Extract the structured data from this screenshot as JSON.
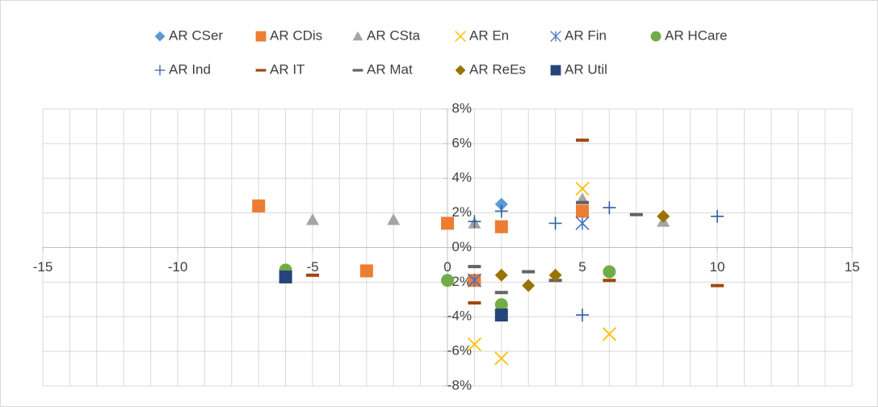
{
  "chart_data": {
    "type": "scatter",
    "xlim": [
      -15,
      15
    ],
    "xticks": [
      -15,
      -10,
      -5,
      0,
      5,
      10,
      15
    ],
    "xgrid": [
      -15,
      -14,
      -13,
      -12,
      -11,
      -10,
      -9,
      -8,
      -7,
      -6,
      -5,
      -4,
      -3,
      -2,
      -1,
      0,
      1,
      2,
      3,
      4,
      5,
      6,
      7,
      8,
      9,
      10,
      11,
      12,
      13,
      14,
      15
    ],
    "ylim": [
      -8,
      8
    ],
    "yticks": [
      {
        "value": -8,
        "label": "-8%"
      },
      {
        "value": -6,
        "label": "-6%"
      },
      {
        "value": -4,
        "label": "-4%"
      },
      {
        "value": -2,
        "label": "-2%"
      },
      {
        "value": 0,
        "label": "0%"
      },
      {
        "value": 2,
        "label": "2%"
      },
      {
        "value": 4,
        "label": "4%"
      },
      {
        "value": 6,
        "label": "6%"
      },
      {
        "value": 8,
        "label": "8%"
      }
    ],
    "grid": true,
    "legend": "top",
    "series": [
      {
        "name": "AR CSer",
        "color": "#5b9bd5",
        "marker": "diamond",
        "x": [
          2
        ],
        "values": [
          2.5
        ]
      },
      {
        "name": "AR CDis",
        "color": "#ed7d31",
        "marker": "square",
        "x": [
          -7,
          0,
          2,
          -3,
          1,
          5
        ],
        "values": [
          2.4,
          1.4,
          1.2,
          -1.35,
          -1.9,
          2.1
        ]
      },
      {
        "name": "AR CSta",
        "color": "#a5a5a5",
        "marker": "triangle",
        "x": [
          -5,
          -2,
          1,
          5,
          8
        ],
        "values": [
          1.6,
          1.6,
          1.4,
          2.8,
          1.5
        ]
      },
      {
        "name": "AR En",
        "color": "#ffc000",
        "marker": "x",
        "x": [
          5,
          1,
          2,
          6
        ],
        "values": [
          3.4,
          -5.6,
          -6.4,
          -5.0
        ]
      },
      {
        "name": "AR Fin",
        "color": "#4472c4",
        "marker": "star",
        "x": [
          5,
          1
        ],
        "values": [
          1.4,
          -1.9
        ]
      },
      {
        "name": "AR HCare",
        "color": "#70ad47",
        "marker": "circle",
        "x": [
          -6,
          0,
          2,
          6
        ],
        "values": [
          -1.3,
          -1.9,
          -3.3,
          -1.4
        ]
      },
      {
        "name": "AR Ind",
        "color": "#2e5fa0",
        "marker": "plus",
        "x": [
          1,
          2,
          4,
          6,
          10,
          5
        ],
        "values": [
          1.5,
          2.1,
          1.4,
          2.3,
          1.8,
          -3.9
        ]
      },
      {
        "name": "AR IT",
        "color": "#9e480e",
        "marker": "dash",
        "x": [
          5,
          -5,
          1,
          6,
          10
        ],
        "values": [
          6.2,
          -1.6,
          -3.2,
          -1.9,
          -2.2
        ]
      },
      {
        "name": "AR Mat",
        "color": "#636363",
        "marker": "dash",
        "x": [
          1,
          2,
          3,
          4,
          5,
          7
        ],
        "values": [
          -1.1,
          -2.6,
          -1.4,
          -1.9,
          2.6,
          1.9
        ]
      },
      {
        "name": "AR ReEs",
        "color": "#997300",
        "marker": "diamond",
        "x": [
          2,
          3,
          4,
          8
        ],
        "values": [
          -1.6,
          -2.2,
          -1.6,
          1.8
        ]
      },
      {
        "name": "AR Util",
        "color": "#264478",
        "marker": "square",
        "x": [
          -6,
          2
        ],
        "values": [
          -1.7,
          -3.9
        ]
      }
    ]
  }
}
